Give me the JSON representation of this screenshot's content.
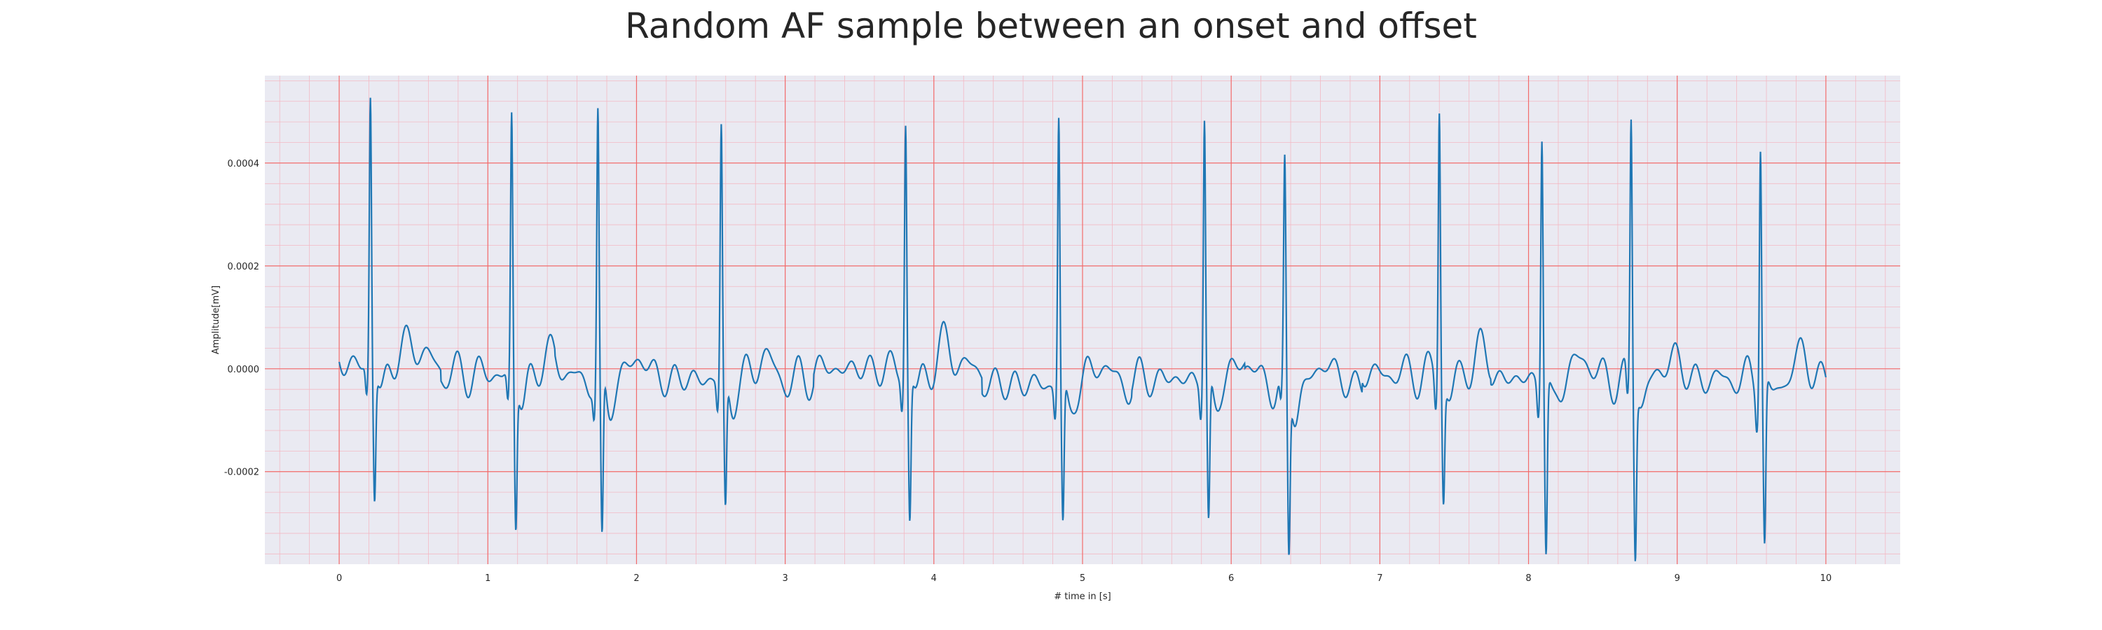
{
  "chart_data": {
    "type": "line",
    "title": "Random AF sample between an onset and offset",
    "xlabel": "# time in [s]",
    "ylabel": "Amplitude[mV]",
    "xlim": [
      -0.5,
      10.5
    ],
    "ylim": [
      -0.00038,
      0.00057
    ],
    "x_ticks": [
      "0",
      "1",
      "2",
      "3",
      "4",
      "5",
      "6",
      "7",
      "8",
      "9",
      "10"
    ],
    "y_ticks": [
      "-0.0002",
      "0.0000",
      "0.0002",
      "0.0004"
    ],
    "grid": {
      "major": true,
      "minor": true,
      "major_color": "#f26b6b",
      "minor_color": "#f3b9c4"
    },
    "background": "#eaeaf2",
    "series": [
      {
        "color": "#1f77b4",
        "r_peaks": [
          0.21,
          1.16,
          1.74,
          2.57,
          3.81,
          4.84,
          5.82,
          6.36,
          7.4,
          8.09,
          8.69,
          9.56
        ],
        "r_amplitudes": [
          0.000514,
          0.000495,
          0.000505,
          0.000487,
          0.000487,
          0.000522,
          0.000509,
          0.000403,
          0.000533,
          0.000487,
          0.00051,
          0.000484
        ],
        "s_amplitudes": [
          -0.000255,
          -0.00029,
          -0.000335,
          -0.000255,
          -0.000285,
          -0.000275,
          -0.000285,
          -0.00033,
          -0.000225,
          -0.000335,
          -0.00032,
          -0.000315
        ],
        "baseline": [
          1e-05,
          -1e-05,
          -2e-05,
          -2e-05,
          0.0,
          -3e-05,
          -2e-05,
          -3e-05,
          -1e-05,
          -2e-05,
          -2e-05,
          -2e-05
        ],
        "x_start": 0.0,
        "x_end": 10.0
      }
    ]
  }
}
